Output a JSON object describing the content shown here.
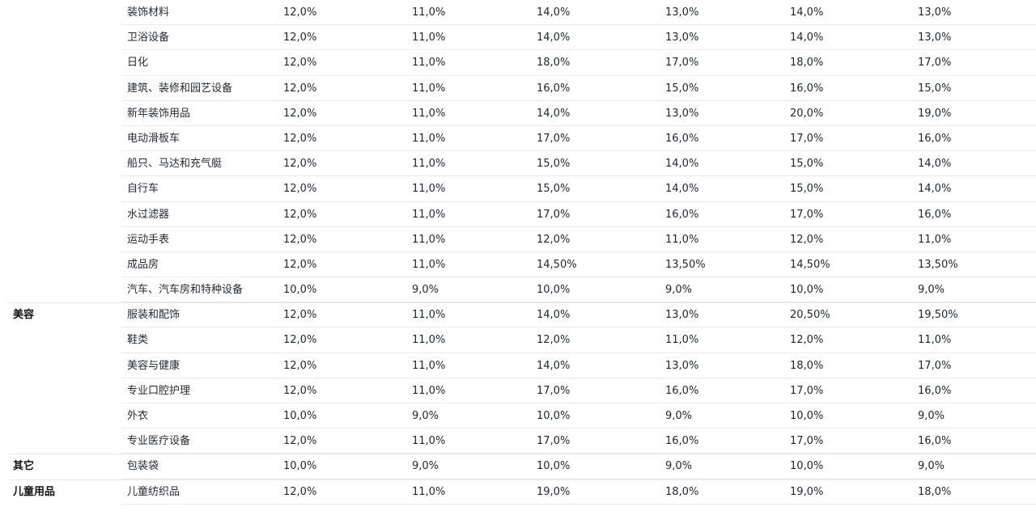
{
  "rows": [
    {
      "category": "",
      "name": "装饰材料",
      "values": [
        "12,0%",
        "11,0%",
        "14,0%",
        "13,0%",
        "14,0%",
        "13,0%"
      ]
    },
    {
      "category": "",
      "name": "卫浴设备",
      "values": [
        "12,0%",
        "11,0%",
        "14,0%",
        "13,0%",
        "14,0%",
        "13,0%"
      ]
    },
    {
      "category": "",
      "name": "日化",
      "values": [
        "12,0%",
        "11,0%",
        "18,0%",
        "17,0%",
        "18,0%",
        "17,0%"
      ]
    },
    {
      "category": "",
      "name": "建筑、装修和园艺设备",
      "values": [
        "12,0%",
        "11,0%",
        "16,0%",
        "15,0%",
        "16,0%",
        "15,0%"
      ]
    },
    {
      "category": "",
      "name": "新年装饰用品",
      "values": [
        "12,0%",
        "11,0%",
        "14,0%",
        "13,0%",
        "20,0%",
        "19,0%"
      ]
    },
    {
      "category": "",
      "name": "电动滑板车",
      "values": [
        "12,0%",
        "11,0%",
        "17,0%",
        "16,0%",
        "17,0%",
        "16,0%"
      ]
    },
    {
      "category": "",
      "name": "船只、马达和充气艇",
      "values": [
        "12,0%",
        "11,0%",
        "15,0%",
        "14,0%",
        "15,0%",
        "14,0%"
      ]
    },
    {
      "category": "",
      "name": "自行车",
      "values": [
        "12,0%",
        "11,0%",
        "15,0%",
        "14,0%",
        "15,0%",
        "14,0%"
      ]
    },
    {
      "category": "",
      "name": "水过滤器",
      "values": [
        "12,0%",
        "11,0%",
        "17,0%",
        "16,0%",
        "17,0%",
        "16,0%"
      ]
    },
    {
      "category": "",
      "name": "运动手表",
      "values": [
        "12,0%",
        "11,0%",
        "12,0%",
        "11,0%",
        "12,0%",
        "11,0%"
      ]
    },
    {
      "category": "",
      "name": "成品房",
      "values": [
        "12,0%",
        "11,0%",
        "14,50%",
        "13,50%",
        "14,50%",
        "13,50%"
      ]
    },
    {
      "category": "",
      "name": "汽车、汽车房和特种设备",
      "values": [
        "10,0%",
        "9,0%",
        "10,0%",
        "9,0%",
        "10,0%",
        "9,0%"
      ]
    },
    {
      "category": "美容",
      "name": "服装和配饰",
      "values": [
        "12,0%",
        "11,0%",
        "14,0%",
        "13,0%",
        "20,50%",
        "19,50%"
      ]
    },
    {
      "category": "",
      "name": "鞋类",
      "values": [
        "12,0%",
        "11,0%",
        "12,0%",
        "11,0%",
        "12,0%",
        "11,0%"
      ]
    },
    {
      "category": "",
      "name": "美容与健康",
      "values": [
        "12,0%",
        "11,0%",
        "14,0%",
        "13,0%",
        "18,0%",
        "17,0%"
      ]
    },
    {
      "category": "",
      "name": "专业口腔护理",
      "values": [
        "12,0%",
        "11,0%",
        "17,0%",
        "16,0%",
        "17,0%",
        "16,0%"
      ]
    },
    {
      "category": "",
      "name": "外衣",
      "values": [
        "10,0%",
        "9,0%",
        "10,0%",
        "9,0%",
        "10,0%",
        "9,0%"
      ]
    },
    {
      "category": "",
      "name": "专业医疗设备",
      "values": [
        "12,0%",
        "11,0%",
        "17,0%",
        "16,0%",
        "17,0%",
        "16,0%"
      ]
    },
    {
      "category": "其它",
      "name": "包装袋",
      "values": [
        "10,0%",
        "9,0%",
        "10,0%",
        "9,0%",
        "10,0%",
        "9,0%"
      ]
    },
    {
      "category": "儿童用品",
      "name": "儿童纺织品",
      "values": [
        "12,0%",
        "11,0%",
        "19,0%",
        "18,0%",
        "19,0%",
        "18,0%"
      ]
    }
  ]
}
